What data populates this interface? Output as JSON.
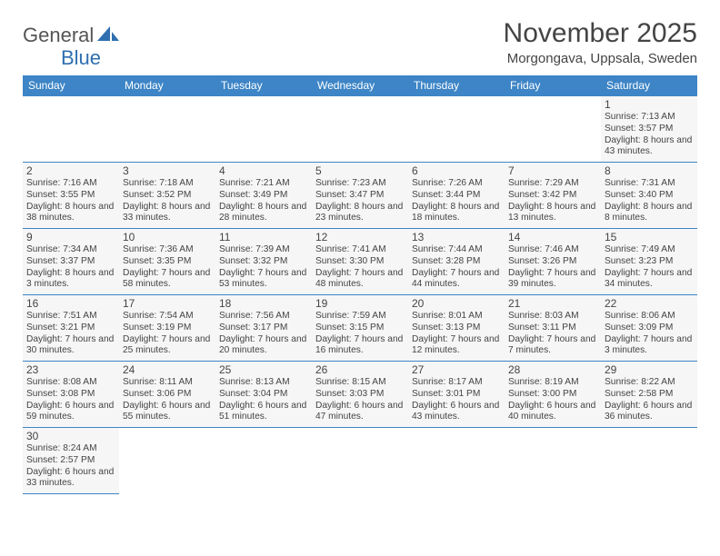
{
  "logo": {
    "part1": "General",
    "part2": "Blue"
  },
  "title": "November 2025",
  "location": "Morgongava, Uppsala, Sweden",
  "colors": {
    "header_bg": "#3d85c6",
    "header_text": "#ffffff",
    "cell_bg": "#f6f6f6",
    "border": "#3d85c6",
    "text": "#444444"
  },
  "weekdays": [
    "Sunday",
    "Monday",
    "Tuesday",
    "Wednesday",
    "Thursday",
    "Friday",
    "Saturday"
  ],
  "weeks": [
    [
      null,
      null,
      null,
      null,
      null,
      null,
      {
        "d": "1",
        "sr": "7:13 AM",
        "ss": "3:57 PM",
        "dl": "8 hours and 43 minutes."
      }
    ],
    [
      {
        "d": "2",
        "sr": "7:16 AM",
        "ss": "3:55 PM",
        "dl": "8 hours and 38 minutes."
      },
      {
        "d": "3",
        "sr": "7:18 AM",
        "ss": "3:52 PM",
        "dl": "8 hours and 33 minutes."
      },
      {
        "d": "4",
        "sr": "7:21 AM",
        "ss": "3:49 PM",
        "dl": "8 hours and 28 minutes."
      },
      {
        "d": "5",
        "sr": "7:23 AM",
        "ss": "3:47 PM",
        "dl": "8 hours and 23 minutes."
      },
      {
        "d": "6",
        "sr": "7:26 AM",
        "ss": "3:44 PM",
        "dl": "8 hours and 18 minutes."
      },
      {
        "d": "7",
        "sr": "7:29 AM",
        "ss": "3:42 PM",
        "dl": "8 hours and 13 minutes."
      },
      {
        "d": "8",
        "sr": "7:31 AM",
        "ss": "3:40 PM",
        "dl": "8 hours and 8 minutes."
      }
    ],
    [
      {
        "d": "9",
        "sr": "7:34 AM",
        "ss": "3:37 PM",
        "dl": "8 hours and 3 minutes."
      },
      {
        "d": "10",
        "sr": "7:36 AM",
        "ss": "3:35 PM",
        "dl": "7 hours and 58 minutes."
      },
      {
        "d": "11",
        "sr": "7:39 AM",
        "ss": "3:32 PM",
        "dl": "7 hours and 53 minutes."
      },
      {
        "d": "12",
        "sr": "7:41 AM",
        "ss": "3:30 PM",
        "dl": "7 hours and 48 minutes."
      },
      {
        "d": "13",
        "sr": "7:44 AM",
        "ss": "3:28 PM",
        "dl": "7 hours and 44 minutes."
      },
      {
        "d": "14",
        "sr": "7:46 AM",
        "ss": "3:26 PM",
        "dl": "7 hours and 39 minutes."
      },
      {
        "d": "15",
        "sr": "7:49 AM",
        "ss": "3:23 PM",
        "dl": "7 hours and 34 minutes."
      }
    ],
    [
      {
        "d": "16",
        "sr": "7:51 AM",
        "ss": "3:21 PM",
        "dl": "7 hours and 30 minutes."
      },
      {
        "d": "17",
        "sr": "7:54 AM",
        "ss": "3:19 PM",
        "dl": "7 hours and 25 minutes."
      },
      {
        "d": "18",
        "sr": "7:56 AM",
        "ss": "3:17 PM",
        "dl": "7 hours and 20 minutes."
      },
      {
        "d": "19",
        "sr": "7:59 AM",
        "ss": "3:15 PM",
        "dl": "7 hours and 16 minutes."
      },
      {
        "d": "20",
        "sr": "8:01 AM",
        "ss": "3:13 PM",
        "dl": "7 hours and 12 minutes."
      },
      {
        "d": "21",
        "sr": "8:03 AM",
        "ss": "3:11 PM",
        "dl": "7 hours and 7 minutes."
      },
      {
        "d": "22",
        "sr": "8:06 AM",
        "ss": "3:09 PM",
        "dl": "7 hours and 3 minutes."
      }
    ],
    [
      {
        "d": "23",
        "sr": "8:08 AM",
        "ss": "3:08 PM",
        "dl": "6 hours and 59 minutes."
      },
      {
        "d": "24",
        "sr": "8:11 AM",
        "ss": "3:06 PM",
        "dl": "6 hours and 55 minutes."
      },
      {
        "d": "25",
        "sr": "8:13 AM",
        "ss": "3:04 PM",
        "dl": "6 hours and 51 minutes."
      },
      {
        "d": "26",
        "sr": "8:15 AM",
        "ss": "3:03 PM",
        "dl": "6 hours and 47 minutes."
      },
      {
        "d": "27",
        "sr": "8:17 AM",
        "ss": "3:01 PM",
        "dl": "6 hours and 43 minutes."
      },
      {
        "d": "28",
        "sr": "8:19 AM",
        "ss": "3:00 PM",
        "dl": "6 hours and 40 minutes."
      },
      {
        "d": "29",
        "sr": "8:22 AM",
        "ss": "2:58 PM",
        "dl": "6 hours and 36 minutes."
      }
    ],
    [
      {
        "d": "30",
        "sr": "8:24 AM",
        "ss": "2:57 PM",
        "dl": "6 hours and 33 minutes."
      },
      null,
      null,
      null,
      null,
      null,
      null
    ]
  ],
  "labels": {
    "sunrise": "Sunrise:",
    "sunset": "Sunset:",
    "daylight": "Daylight:"
  }
}
